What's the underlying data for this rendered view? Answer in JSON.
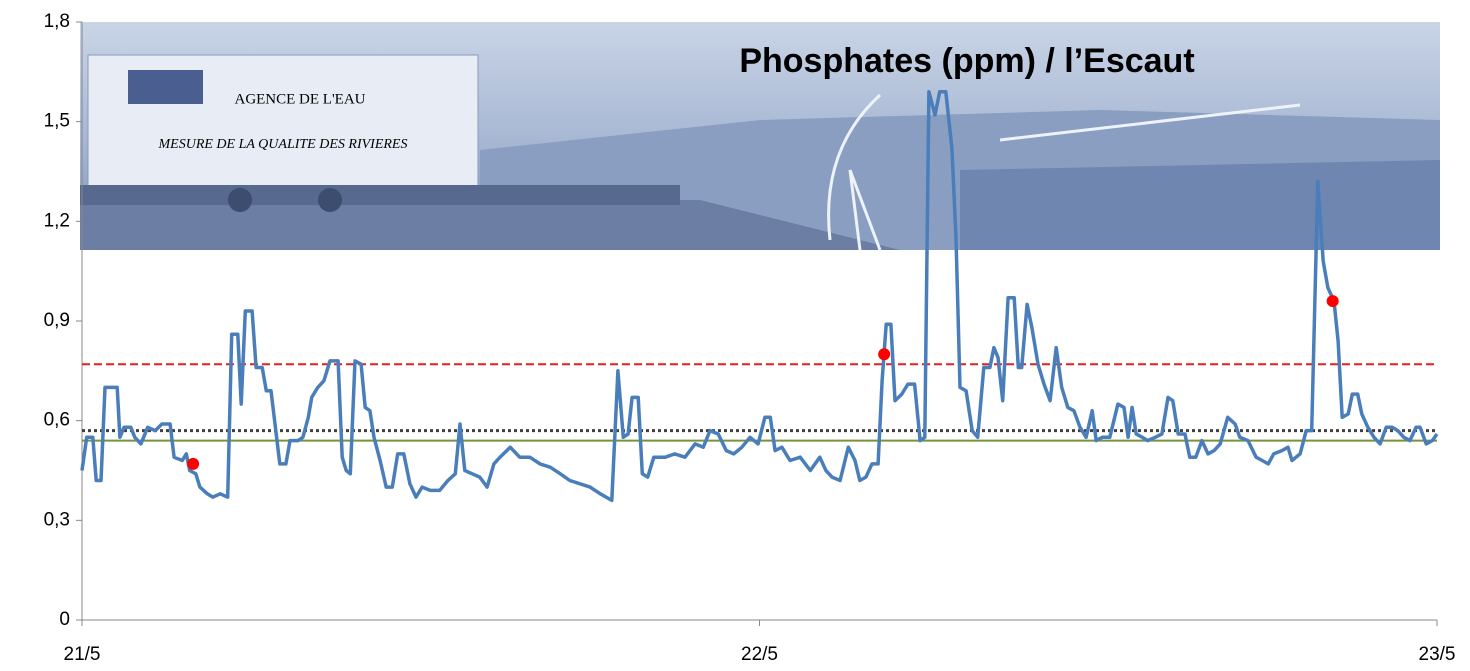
{
  "chart_data": {
    "type": "line",
    "title": "Phosphates (ppm) / l’Escaut",
    "background_image": {
      "texts": [
        "AGENCE DE L'EAU",
        "MESURE DE LA QUALITE DES RIVIERES"
      ]
    },
    "xlim": [
      0,
      2
    ],
    "xticks": [
      {
        "value": 0,
        "label": "21/5"
      },
      {
        "value": 1,
        "label": "22/5"
      },
      {
        "value": 2,
        "label": "23/5"
      }
    ],
    "ylim": [
      0,
      1.8
    ],
    "yticks": [
      0,
      {
        "value": 0.3,
        "label": "0,3"
      },
      {
        "value": 0.6,
        "label": "0,6"
      },
      {
        "value": 0.9,
        "label": "0,9"
      },
      {
        "value": 1.2,
        "label": "1,2"
      },
      {
        "value": 1.5,
        "label": "1,5"
      },
      {
        "value": 1.8,
        "label": "1,8"
      }
    ],
    "hlines": [
      {
        "value": 0.77,
        "color": "#e02020",
        "style": "dashed"
      },
      {
        "value": 0.57,
        "color": "#404040",
        "style": "dotted"
      },
      {
        "value": 0.54,
        "color": "#77933c",
        "style": "solid"
      }
    ],
    "series": [
      {
        "color": "#4a7ebb",
        "mode": "line",
        "x": [
          0,
          0.007,
          0.016,
          0.021,
          0.028,
          0.034,
          0.052,
          0.056,
          0.062,
          0.072,
          0.078,
          0.087,
          0.097,
          0.108,
          0.118,
          0.13,
          0.136,
          0.148,
          0.154,
          0.159,
          0.168,
          0.174,
          0.185,
          0.193,
          0.204,
          0.215,
          0.221,
          0.23,
          0.235,
          0.241,
          0.251,
          0.257,
          0.266,
          0.272,
          0.279,
          0.286,
          0.292,
          0.301,
          0.307,
          0.319,
          0.326,
          0.334,
          0.339,
          0.348,
          0.357,
          0.366,
          0.378,
          0.384,
          0.39,
          0.396,
          0.403,
          0.412,
          0.418,
          0.425,
          0.431,
          0.44,
          0.449,
          0.458,
          0.466,
          0.475,
          0.484,
          0.493,
          0.502,
          0.514,
          0.528,
          0.54,
          0.551,
          0.558,
          0.565,
          0.576,
          0.587,
          0.598,
          0.608,
          0.617,
          0.632,
          0.646,
          0.661,
          0.676,
          0.691,
          0.706,
          0.72,
          0.735,
          0.75,
          0.765,
          0.782,
          0.791,
          0.799,
          0.806,
          0.812,
          0.821,
          0.827,
          0.835,
          0.844,
          0.861,
          0.875,
          0.89,
          0.905,
          0.917,
          0.927,
          0.939,
          0.951,
          0.962,
          0.974,
          0.986,
          0.998,
          1.008,
          1.016,
          1.023,
          1.033,
          1.045,
          1.06,
          1.075,
          1.089,
          1.098,
          1.107,
          1.119,
          1.131,
          1.141,
          1.148,
          1.157,
          1.166,
          1.175,
          1.181,
          1.187,
          1.194,
          1.2,
          1.21,
          1.219,
          1.229,
          1.237,
          1.244,
          1.25,
          1.259,
          1.266,
          1.275,
          1.284,
          1.29,
          1.296,
          1.305,
          1.314,
          1.322,
          1.331,
          1.34,
          1.346,
          1.352,
          1.359,
          1.367,
          1.376,
          1.382,
          1.387,
          1.395,
          1.402,
          1.411,
          1.42,
          1.429,
          1.438,
          1.446,
          1.455,
          1.464,
          1.473,
          1.482,
          1.491,
          1.497,
          1.506,
          1.517,
          1.529,
          1.538,
          1.544,
          1.55,
          1.556,
          1.565,
          1.573,
          1.584,
          1.594,
          1.603,
          1.61,
          1.618,
          1.628,
          1.635,
          1.644,
          1.653,
          1.662,
          1.671,
          1.68,
          1.691,
          1.702,
          1.709,
          1.721,
          1.733,
          1.742,
          1.751,
          1.759,
          1.771,
          1.78,
          1.786,
          1.798,
          1.807,
          1.815,
          1.824,
          1.832,
          1.839,
          1.848,
          1.854,
          1.86,
          1.869,
          1.875,
          1.883,
          1.889,
          1.898,
          1.907,
          1.916,
          1.925,
          1.934,
          1.942,
          1.951,
          1.96,
          1.969,
          1.975,
          1.984,
          1.993,
          2
        ],
        "values": [
          0.45,
          0.55,
          0.55,
          0.42,
          0.42,
          0.7,
          0.7,
          0.55,
          0.58,
          0.58,
          0.55,
          0.53,
          0.58,
          0.57,
          0.59,
          0.59,
          0.49,
          0.48,
          0.5,
          0.45,
          0.44,
          0.4,
          0.38,
          0.37,
          0.38,
          0.37,
          0.86,
          0.86,
          0.65,
          0.93,
          0.93,
          0.76,
          0.76,
          0.69,
          0.69,
          0.57,
          0.47,
          0.47,
          0.54,
          0.54,
          0.55,
          0.61,
          0.67,
          0.7,
          0.72,
          0.78,
          0.78,
          0.49,
          0.45,
          0.44,
          0.78,
          0.77,
          0.64,
          0.63,
          0.55,
          0.48,
          0.4,
          0.4,
          0.5,
          0.5,
          0.41,
          0.37,
          0.4,
          0.39,
          0.39,
          0.42,
          0.44,
          0.59,
          0.45,
          0.44,
          0.43,
          0.4,
          0.47,
          0.49,
          0.52,
          0.49,
          0.49,
          0.47,
          0.46,
          0.44,
          0.42,
          0.41,
          0.4,
          0.38,
          0.36,
          0.75,
          0.55,
          0.56,
          0.67,
          0.67,
          0.44,
          0.43,
          0.49,
          0.49,
          0.5,
          0.49,
          0.53,
          0.52,
          0.57,
          0.56,
          0.51,
          0.5,
          0.52,
          0.55,
          0.53,
          0.61,
          0.61,
          0.51,
          0.52,
          0.48,
          0.49,
          0.45,
          0.49,
          0.45,
          0.43,
          0.42,
          0.52,
          0.48,
          0.42,
          0.43,
          0.47,
          0.47,
          0.72,
          0.89,
          0.89,
          0.66,
          0.68,
          0.71,
          0.71,
          0.54,
          0.55,
          1.59,
          1.52,
          1.59,
          1.59,
          1.42,
          1.15,
          0.7,
          0.69,
          0.57,
          0.55,
          0.76,
          0.76,
          0.82,
          0.79,
          0.66,
          0.97,
          0.97,
          0.76,
          0.76,
          0.95,
          0.88,
          0.77,
          0.71,
          0.66,
          0.82,
          0.7,
          0.64,
          0.63,
          0.58,
          0.55,
          0.63,
          0.54,
          0.55,
          0.55,
          0.65,
          0.64,
          0.55,
          0.64,
          0.56,
          0.55,
          0.54,
          0.55,
          0.56,
          0.67,
          0.66,
          0.56,
          0.56,
          0.49,
          0.49,
          0.54,
          0.5,
          0.51,
          0.53,
          0.61,
          0.59,
          0.55,
          0.54,
          0.49,
          0.48,
          0.47,
          0.5,
          0.51,
          0.52,
          0.48,
          0.5,
          0.57,
          0.57,
          1.32,
          1.08,
          1.0,
          0.96,
          0.84,
          0.61,
          0.62,
          0.68,
          0.68,
          0.62,
          0.58,
          0.55,
          0.53,
          0.58,
          0.58,
          0.57,
          0.55,
          0.54,
          0.58,
          0.58,
          0.53,
          0.54,
          0.56
        ]
      },
      {
        "color": "#ff0000",
        "mode": "markers",
        "x": [
          0.164,
          1.184,
          1.846
        ],
        "values": [
          0.47,
          0.8,
          0.96
        ]
      }
    ]
  }
}
